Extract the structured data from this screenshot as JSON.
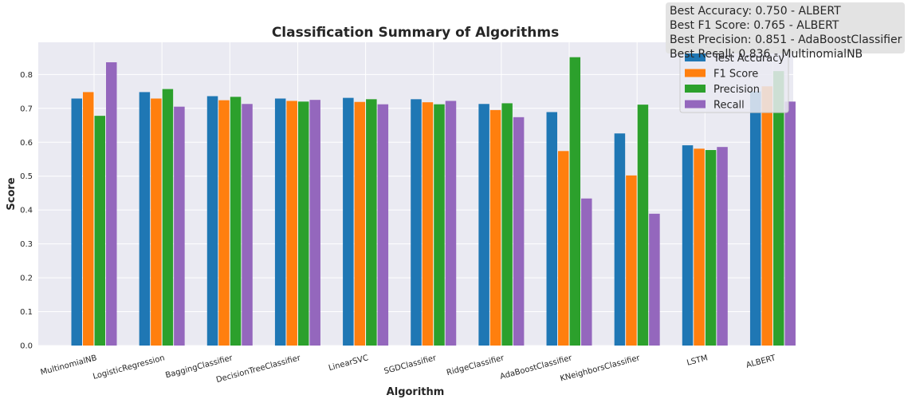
{
  "chart_data": {
    "type": "bar",
    "title": "Classification Summary of Algorithms",
    "xlabel": "Algorithm",
    "ylabel": "Score",
    "ylim": [
      0,
      0.895
    ],
    "yticks": [
      "0.0",
      "0.1",
      "0.2",
      "0.3",
      "0.4",
      "0.5",
      "0.6",
      "0.7",
      "0.8"
    ],
    "grid": true,
    "legend_position": "top-right",
    "categories": [
      "MultinomialNB",
      "LogisticRegression",
      "BaggingClassifier",
      "DecisionTreeClassifier",
      "LinearSVC",
      "SGDClassifier",
      "RidgeClassifier",
      "AdaBoostClassifier",
      "KNeighborsClassifier",
      "LSTM",
      "ALBERT"
    ],
    "series": [
      {
        "name": "Test Accuracy",
        "color": "#1f77b4",
        "values": [
          0.729,
          0.748,
          0.736,
          0.729,
          0.731,
          0.727,
          0.713,
          0.689,
          0.626,
          0.591,
          0.75
        ]
      },
      {
        "name": "F1 Score",
        "color": "#ff7f0e",
        "values": [
          0.748,
          0.729,
          0.724,
          0.722,
          0.719,
          0.718,
          0.695,
          0.574,
          0.502,
          0.581,
          0.765
        ]
      },
      {
        "name": "Precision",
        "color": "#2ca02c",
        "values": [
          0.678,
          0.757,
          0.734,
          0.72,
          0.727,
          0.712,
          0.715,
          0.851,
          0.711,
          0.577,
          0.81
        ]
      },
      {
        "name": "Recall",
        "color": "#9467bd",
        "values": [
          0.836,
          0.705,
          0.713,
          0.725,
          0.712,
          0.722,
          0.674,
          0.434,
          0.389,
          0.586,
          0.72
        ]
      }
    ],
    "annotation": [
      "Best Accuracy: 0.750 - ALBERT",
      "Best F1 Score: 0.765 - ALBERT",
      "Best Precision: 0.851 - AdaBoostClassifier",
      "Best Recall: 0.836 - MultinomialNB"
    ]
  }
}
